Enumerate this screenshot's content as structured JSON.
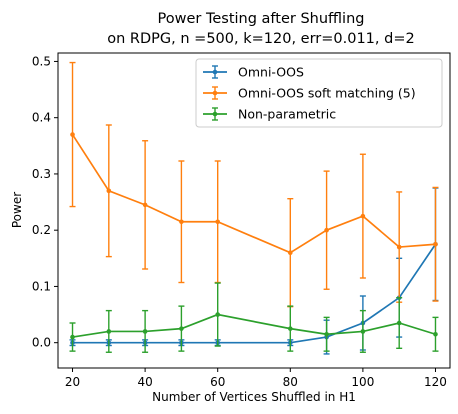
{
  "chart_data": {
    "type": "line",
    "title_lines": [
      "Power Testing after Shuffling",
      "on RDPG, n =500, k=120, err=0.011, d=2"
    ],
    "xlabel": "Number of Vertices Shuffled in H1",
    "ylabel": "Power",
    "xlim": [
      16,
      124
    ],
    "ylim": [
      -0.045,
      0.515
    ],
    "xticks": [
      20,
      40,
      60,
      80,
      100,
      120
    ],
    "yticks": [
      0.0,
      0.1,
      0.2,
      0.3,
      0.4,
      0.5
    ],
    "grid": false,
    "legend_position": "top-right",
    "x": [
      20,
      30,
      40,
      50,
      60,
      80,
      90,
      100,
      110,
      120
    ],
    "series": [
      {
        "name": "Omni-OOS",
        "color": "#1f77b4",
        "values": [
          0.0,
          0.0,
          0.0,
          0.0,
          0.0,
          0.0,
          0.01,
          0.035,
          0.08,
          0.175
        ],
        "errors": [
          0.005,
          0.005,
          0.005,
          0.005,
          0.005,
          0.005,
          0.03,
          0.048,
          0.07,
          0.1
        ]
      },
      {
        "name": "Omni-OOS soft matching (5)",
        "color": "#ff7f0e",
        "values": [
          0.37,
          0.27,
          0.245,
          0.215,
          0.215,
          0.16,
          0.2,
          0.225,
          0.17,
          0.175
        ],
        "errors": [
          0.128,
          0.117,
          0.114,
          0.108,
          0.108,
          0.096,
          0.105,
          0.11,
          0.098,
          0.101
        ]
      },
      {
        "name": "Non-parametric",
        "color": "#2ca02c",
        "values": [
          0.01,
          0.02,
          0.02,
          0.025,
          0.05,
          0.025,
          0.015,
          0.02,
          0.035,
          0.015
        ],
        "errors": [
          0.025,
          0.037,
          0.037,
          0.04,
          0.056,
          0.04,
          0.03,
          0.037,
          0.045,
          0.03
        ]
      }
    ]
  }
}
